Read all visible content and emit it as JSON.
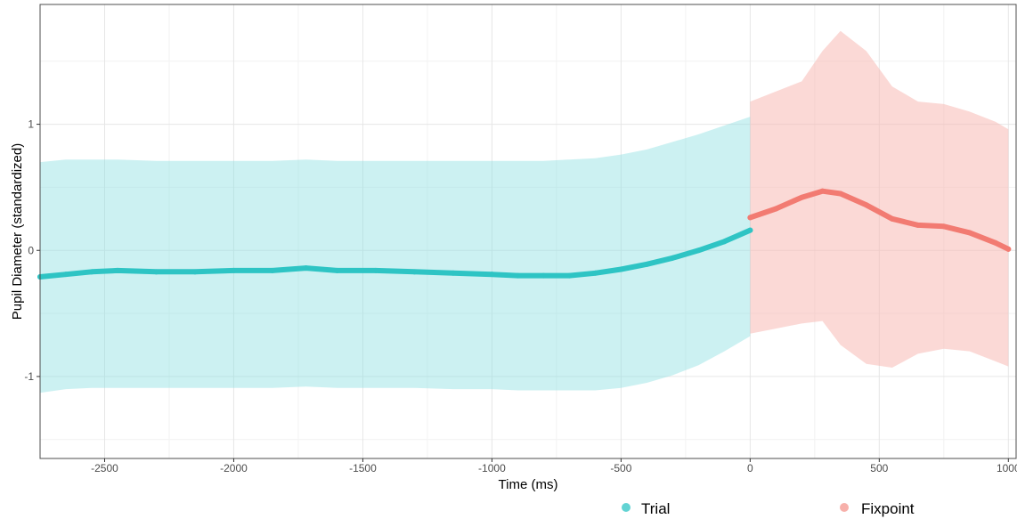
{
  "chart_data": {
    "type": "line",
    "title": "",
    "xlabel": "Time (ms)",
    "ylabel": "Pupil Diameter (standardized)",
    "xlim": [
      -2750,
      1030
    ],
    "ylim": [
      -1.65,
      1.95
    ],
    "x_ticks": [
      -2500,
      -2000,
      -1500,
      -1000,
      -500,
      0,
      500,
      1000
    ],
    "y_ticks": [
      -1,
      0,
      1
    ],
    "x_tick_labels": [
      "-2500",
      "-2000",
      "-1500",
      "-1000",
      "-500",
      "0",
      "500",
      "1000"
    ],
    "y_tick_labels": [
      "-1",
      "0",
      "1"
    ],
    "grid": true,
    "legend_position": "bottom",
    "legend": [
      "Trial",
      "Fixpoint"
    ],
    "series": [
      {
        "name": "Trial",
        "color": "#2EC4C4",
        "band_color": "#8EDFE3",
        "x": [
          -2750,
          -2650,
          -2550,
          -2450,
          -2300,
          -2150,
          -2000,
          -1850,
          -1720,
          -1600,
          -1450,
          -1300,
          -1150,
          -1000,
          -900,
          -800,
          -700,
          -600,
          -500,
          -400,
          -300,
          -200,
          -100,
          0
        ],
        "y": [
          -0.21,
          -0.19,
          -0.17,
          -0.16,
          -0.17,
          -0.17,
          -0.16,
          -0.16,
          -0.14,
          -0.16,
          -0.16,
          -0.17,
          -0.18,
          -0.19,
          -0.2,
          -0.2,
          -0.2,
          -0.18,
          -0.15,
          -0.11,
          -0.06,
          0.0,
          0.07,
          0.16
        ],
        "lower": [
          -1.13,
          -1.1,
          -1.09,
          -1.09,
          -1.09,
          -1.09,
          -1.09,
          -1.09,
          -1.08,
          -1.09,
          -1.09,
          -1.09,
          -1.1,
          -1.1,
          -1.11,
          -1.11,
          -1.11,
          -1.11,
          -1.09,
          -1.05,
          -0.99,
          -0.91,
          -0.8,
          -0.68
        ],
        "upper": [
          0.7,
          0.72,
          0.72,
          0.72,
          0.71,
          0.71,
          0.71,
          0.71,
          0.72,
          0.71,
          0.71,
          0.71,
          0.71,
          0.71,
          0.71,
          0.71,
          0.72,
          0.73,
          0.76,
          0.8,
          0.86,
          0.92,
          0.99,
          1.06
        ]
      },
      {
        "name": "Fixpoint",
        "color": "#F27B72",
        "band_color": "#F8B3AE",
        "x": [
          0,
          100,
          200,
          280,
          350,
          450,
          550,
          650,
          750,
          850,
          950,
          1000
        ],
        "y": [
          0.26,
          0.33,
          0.42,
          0.47,
          0.45,
          0.36,
          0.25,
          0.2,
          0.19,
          0.14,
          0.06,
          0.01
        ],
        "lower": [
          -0.66,
          -0.62,
          -0.58,
          -0.56,
          -0.75,
          -0.9,
          -0.93,
          -0.82,
          -0.78,
          -0.8,
          -0.88,
          -0.92
        ],
        "upper": [
          1.18,
          1.26,
          1.34,
          1.58,
          1.74,
          1.58,
          1.3,
          1.18,
          1.16,
          1.1,
          1.02,
          0.96
        ]
      }
    ]
  }
}
